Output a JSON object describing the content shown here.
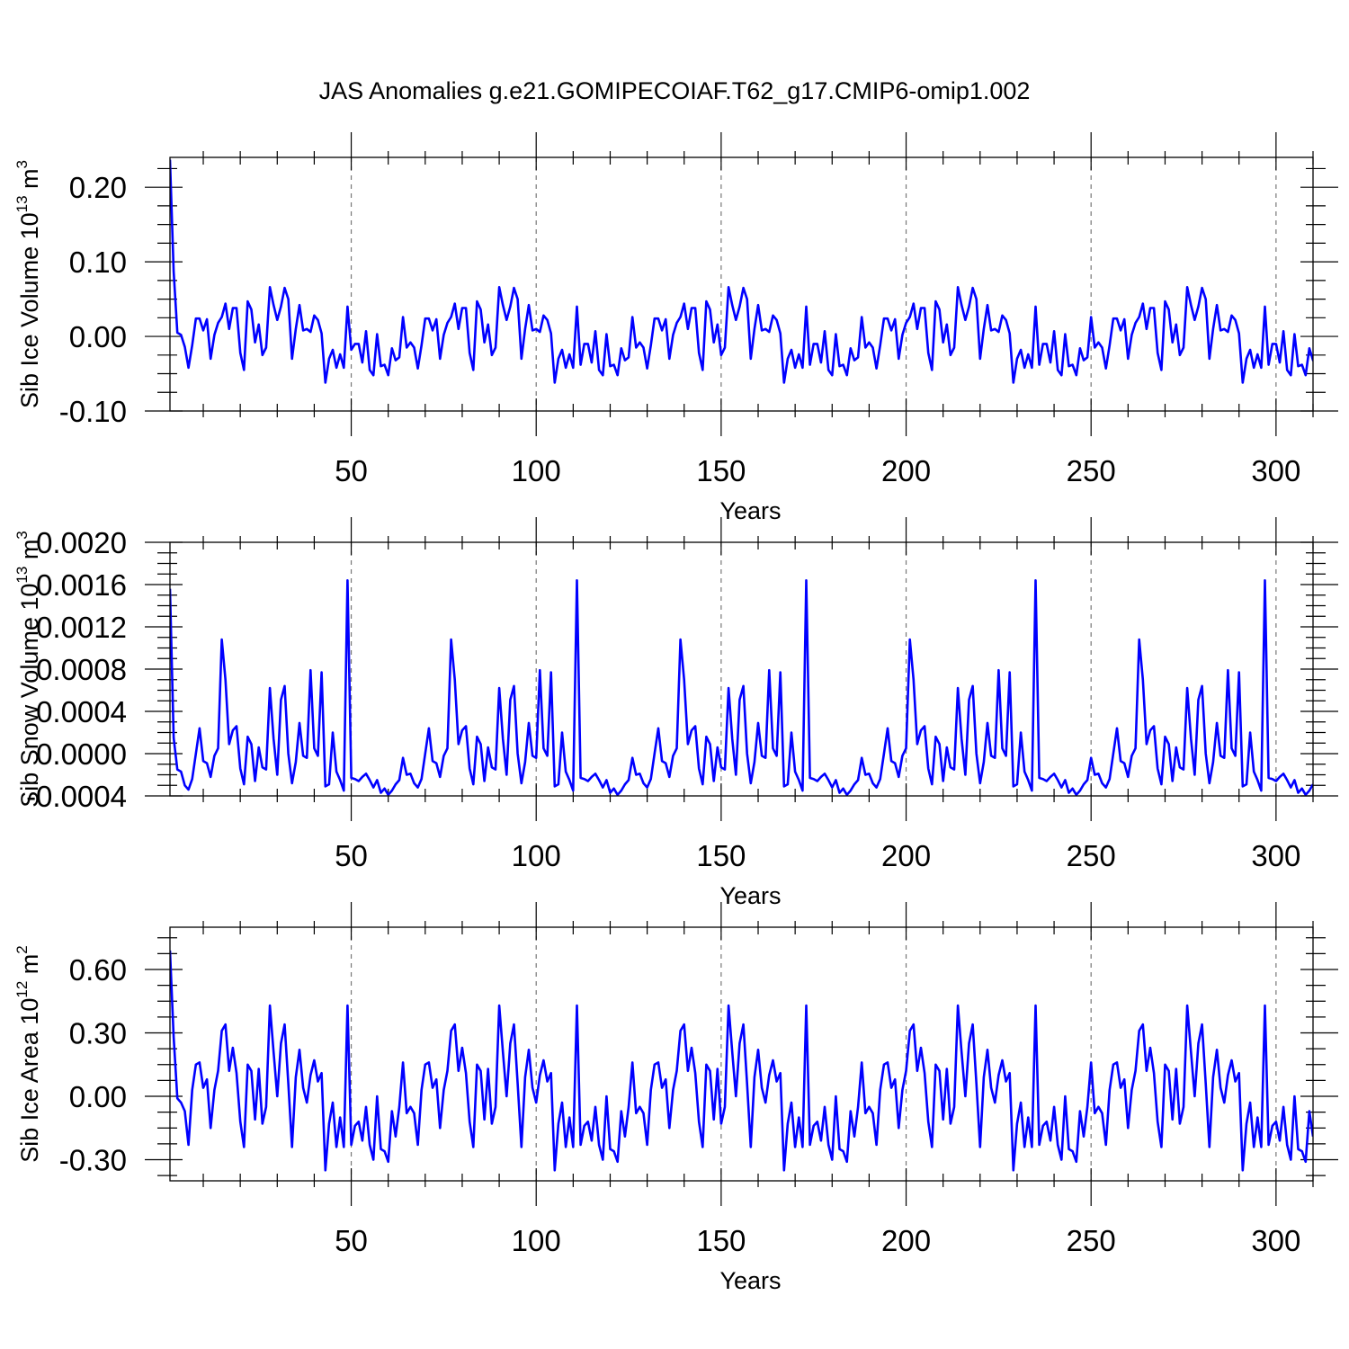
{
  "figure": {
    "title": "JAS Anomalies g.e21.GOMIPECOIAF.T62_g17.CMIP6-omip1.002",
    "line_color": "#0000ff",
    "grid": "dashed vertical lines at major x ticks"
  },
  "chart_data": [
    {
      "type": "line",
      "title": "JAS Anomalies g.e21.GOMIPECOIAF.T62_g17.CMIP6-omip1.002",
      "ylabel": "Sib Ice Volume 10",
      "ylabel_sup": "13",
      "ylabel_unit": " m",
      "ylabel_unit_sup": "3",
      "xlabel": "Years",
      "xlim": [
        1,
        310
      ],
      "ylim": [
        -0.1,
        0.24
      ],
      "xticks": [
        50,
        100,
        150,
        200,
        250,
        300
      ],
      "xtick_labels": [
        "50",
        "100",
        "150",
        "200",
        "250",
        "300"
      ],
      "yticks": [
        -0.1,
        0.0,
        0.1,
        0.2
      ],
      "ytick_labels": [
        "-0.10",
        "0.00",
        "0.10",
        "0.20"
      ],
      "cycle_start_x": 3,
      "cycle_length": 62,
      "pattern_length": 62,
      "notes": "Approximate values read from the plot; after an initial spin-up the series repeats with a 62-year forcing cycle.",
      "values": [
        0.237,
        0.087,
        0.005,
        0.002,
        -0.014,
        -0.042,
        -0.012,
        0.024,
        0.024,
        0.008,
        0.023,
        -0.03,
        0.002,
        0.018,
        0.026,
        0.044,
        0.01,
        0.038,
        0.038,
        -0.022,
        -0.045,
        0.047,
        0.036,
        -0.008,
        0.016,
        -0.025,
        -0.015,
        0.066,
        0.042,
        0.022,
        0.04,
        0.065,
        0.05,
        -0.03,
        0.01,
        0.042,
        0.008,
        0.01,
        0.006,
        0.028,
        0.022,
        0.004,
        -0.062,
        -0.03,
        -0.018,
        -0.042,
        -0.024,
        -0.042,
        0.04,
        -0.018,
        -0.01,
        -0.01,
        -0.035,
        0.007,
        -0.045,
        -0.052,
        0.003,
        -0.04,
        -0.038,
        -0.052,
        -0.016,
        -0.032,
        -0.028,
        0.026,
        -0.015,
        -0.008,
        -0.015,
        -0.043,
        -0.012,
        0.024,
        0.024,
        0.008,
        0.023,
        -0.03,
        0.002,
        0.018,
        0.026,
        0.044,
        0.01,
        0.038,
        0.038,
        -0.022,
        -0.045,
        0.047,
        0.036,
        -0.008,
        0.016,
        -0.025,
        -0.015,
        0.066,
        0.042,
        0.022,
        0.04,
        0.065,
        0.05,
        -0.03,
        0.01,
        0.042,
        0.008,
        0.01,
        0.006,
        0.028,
        0.022,
        0.004,
        -0.062,
        -0.03,
        -0.018,
        -0.042,
        -0.024,
        -0.042,
        0.04,
        -0.038,
        -0.01,
        -0.01,
        -0.035,
        0.007,
        -0.045,
        -0.052,
        0.003,
        -0.04,
        -0.038,
        -0.052,
        -0.016,
        -0.032,
        -0.028,
        0.026,
        -0.015,
        -0.008,
        -0.015,
        -0.043,
        -0.012,
        0.024,
        0.024,
        0.008,
        0.023,
        -0.03,
        0.002,
        0.018,
        0.026,
        0.044,
        0.01,
        0.038,
        0.038,
        -0.022,
        -0.045,
        0.047,
        0.036,
        -0.008,
        0.016,
        -0.025,
        -0.015,
        0.066,
        0.042,
        0.022,
        0.04,
        0.065,
        0.05,
        -0.03,
        0.01,
        0.042,
        0.008,
        0.01,
        0.006,
        0.028,
        0.022,
        0.004,
        -0.062,
        -0.03,
        -0.018,
        -0.042,
        -0.024,
        -0.042,
        0.04,
        -0.038,
        -0.01,
        -0.01,
        -0.035,
        0.007,
        -0.045,
        -0.052,
        0.003,
        -0.04,
        -0.038,
        -0.052,
        -0.016,
        -0.032,
        -0.028,
        0.026,
        -0.015,
        -0.008,
        -0.015,
        -0.043,
        -0.012,
        0.024,
        0.024,
        0.008,
        0.023,
        -0.03,
        0.002,
        0.018,
        0.026,
        0.044,
        0.01,
        0.038,
        0.038,
        -0.022,
        -0.045,
        0.047,
        0.036,
        -0.008,
        0.016,
        -0.025,
        -0.015,
        0.066,
        0.042,
        0.022,
        0.04,
        0.065,
        0.05,
        -0.03,
        0.01,
        0.042,
        0.008,
        0.01,
        0.006,
        0.028,
        0.022,
        0.004,
        -0.062,
        -0.03,
        -0.018,
        -0.042,
        -0.024,
        -0.042,
        0.04,
        -0.038,
        -0.01,
        -0.01,
        -0.035,
        0.007,
        -0.045,
        -0.052,
        0.003,
        -0.04,
        -0.038,
        -0.052,
        -0.016,
        -0.032,
        -0.028,
        0.026,
        -0.015,
        -0.008,
        -0.015,
        -0.043,
        -0.012,
        0.024,
        0.024,
        0.008,
        0.023,
        -0.03,
        0.002,
        0.018,
        0.026,
        0.044,
        0.01,
        0.038,
        0.038,
        -0.022,
        -0.045,
        0.047,
        0.036,
        -0.008,
        0.016,
        -0.025,
        -0.015,
        0.066,
        0.042,
        0.022,
        0.04,
        0.065,
        0.05,
        -0.03,
        0.01,
        0.042,
        0.008,
        0.01,
        0.006,
        0.028,
        0.022,
        0.004,
        -0.062,
        -0.03,
        -0.018,
        -0.042,
        -0.024,
        -0.042,
        0.04,
        -0.038,
        -0.01,
        -0.01,
        -0.035,
        0.007,
        -0.045,
        -0.052,
        0.003,
        -0.04,
        -0.038,
        -0.052,
        -0.016,
        -0.032,
        -0.028
      ]
    },
    {
      "type": "line",
      "ylabel": "Sib Snow Volume 10",
      "ylabel_sup": "13",
      "ylabel_unit": " m",
      "ylabel_unit_sup": "3",
      "xlabel": "Years",
      "xlim": [
        1,
        310
      ],
      "ylim": [
        -0.0004,
        0.002
      ],
      "xticks": [
        50,
        100,
        150,
        200,
        250,
        300
      ],
      "xtick_labels": [
        "50",
        "100",
        "150",
        "200",
        "250",
        "300"
      ],
      "yticks": [
        -0.0004,
        0.0,
        0.0004,
        0.0008,
        0.0012,
        0.0016,
        0.002
      ],
      "ytick_labels": [
        "-0.0004",
        "0.0000",
        "0.0004",
        "0.0008",
        "0.0012",
        "0.0016",
        "0.0020"
      ],
      "cycle_start_x": 3,
      "cycle_length": 62,
      "notes": "Approximate values read from the plot; the series repeats with a 62-year forcing cycle.",
      "values": [
        0.00156,
        0.00015,
        -0.00015,
        -0.00017,
        -0.0003,
        -0.00034,
        -0.00024,
        0.0,
        0.00024,
        -7e-05,
        -9e-05,
        -0.00022,
        -2e-05,
        5e-05,
        0.00108,
        0.0007,
        9e-05,
        0.00022,
        0.00026,
        -0.00014,
        -0.00029,
        0.00016,
        9e-05,
        -0.00026,
        6e-05,
        -0.00013,
        -0.00015,
        0.00062,
        0.00014,
        -0.0002,
        0.00051,
        0.00064,
        0.0,
        -0.00028,
        -8e-05,
        0.00029,
        -2e-05,
        -4e-05,
        0.00079,
        5e-05,
        -2e-05,
        0.00077,
        -0.00031,
        -0.00029,
        0.0002,
        -0.00017,
        -0.00025,
        -0.00035,
        0.00164,
        -0.00023,
        -0.00024,
        -0.00026,
        -0.00022,
        -0.00019,
        -0.00025,
        -0.00032,
        -0.00025,
        -0.00037,
        -0.00033,
        -0.00039,
        -0.00035,
        -0.00029,
        -0.00025,
        -4e-05,
        -0.0002,
        -0.00019,
        -0.00028,
        -0.00032,
        -0.00024,
        0.0,
        0.00024,
        -7e-05,
        -9e-05,
        -0.00022,
        -2e-05,
        5e-05,
        0.00108,
        0.0007,
        9e-05,
        0.00022,
        0.00026,
        -0.00014,
        -0.00029,
        0.00016,
        9e-05,
        -0.00026,
        6e-05,
        -0.00013,
        -0.00015,
        0.00062,
        0.00014,
        -0.0002,
        0.00051,
        0.00064,
        0.0,
        -0.00028,
        -8e-05,
        0.00029,
        -2e-05,
        -4e-05,
        0.00079,
        5e-05,
        -2e-05,
        0.00077,
        -0.00031,
        -0.00029,
        0.0002,
        -0.00017,
        -0.00025,
        -0.00035,
        0.00164,
        -0.00023,
        -0.00024,
        -0.00026,
        -0.00022,
        -0.00019,
        -0.00025,
        -0.00032,
        -0.00025,
        -0.00037,
        -0.00033,
        -0.00039,
        -0.00035,
        -0.00029,
        -0.00025,
        -4e-05,
        -0.0002,
        -0.00019,
        -0.00028,
        -0.00032,
        -0.00024,
        0.0,
        0.00024,
        -7e-05,
        -9e-05,
        -0.00022,
        -2e-05,
        5e-05,
        0.00108,
        0.0007,
        9e-05,
        0.00022,
        0.00026,
        -0.00014,
        -0.00029,
        0.00016,
        9e-05,
        -0.00026,
        6e-05,
        -0.00013,
        -0.00015,
        0.00062,
        0.00014,
        -0.0002,
        0.00051,
        0.00064,
        0.0,
        -0.00028,
        -8e-05,
        0.00029,
        -2e-05,
        -4e-05,
        0.00079,
        5e-05,
        -2e-05,
        0.00077,
        -0.00031,
        -0.00029,
        0.0002,
        -0.00017,
        -0.00025,
        -0.00035,
        0.00164,
        -0.00023,
        -0.00024,
        -0.00026,
        -0.00022,
        -0.00019,
        -0.00025,
        -0.00032,
        -0.00025,
        -0.00037,
        -0.00033,
        -0.00039,
        -0.00035,
        -0.00029,
        -0.00025,
        -4e-05,
        -0.0002,
        -0.00019,
        -0.00028,
        -0.00032,
        -0.00024,
        0.0,
        0.00024,
        -7e-05,
        -9e-05,
        -0.00022,
        -2e-05,
        5e-05,
        0.00108,
        0.0007,
        9e-05,
        0.00022,
        0.00026,
        -0.00014,
        -0.00029,
        0.00016,
        9e-05,
        -0.00026,
        6e-05,
        -0.00013,
        -0.00015,
        0.00062,
        0.00014,
        -0.0002,
        0.00051,
        0.00064,
        0.0,
        -0.00028,
        -8e-05,
        0.00029,
        -2e-05,
        -4e-05,
        0.00079,
        5e-05,
        -2e-05,
        0.00077,
        -0.00031,
        -0.00029,
        0.0002,
        -0.00017,
        -0.00025,
        -0.00035,
        0.00164,
        -0.00023,
        -0.00024,
        -0.00026,
        -0.00022,
        -0.00019,
        -0.00025,
        -0.00032,
        -0.00025,
        -0.00037,
        -0.00033,
        -0.00039,
        -0.00035,
        -0.00029,
        -0.00025,
        -4e-05,
        -0.0002,
        -0.00019,
        -0.00028,
        -0.00032,
        -0.00024,
        0.0,
        0.00024,
        -7e-05,
        -9e-05,
        -0.00022,
        -2e-05,
        5e-05,
        0.00108,
        0.0007,
        9e-05,
        0.00022,
        0.00026,
        -0.00014,
        -0.00029,
        0.00016,
        9e-05,
        -0.00026,
        6e-05,
        -0.00013,
        -0.00015,
        0.00062,
        0.00014,
        -0.0002,
        0.00051,
        0.00064,
        0.0,
        -0.00028,
        -8e-05,
        0.00029,
        -2e-05,
        -4e-05,
        0.00079,
        5e-05,
        -2e-05,
        0.00077,
        -0.00031,
        -0.00029,
        0.0002,
        -0.00017,
        -0.00025,
        -0.00035,
        0.00164,
        -0.00023,
        -0.00024,
        -0.00026,
        -0.00022,
        -0.00019,
        -0.00025,
        -0.00032,
        -0.00025,
        -0.00037,
        -0.00033,
        -0.00039,
        -0.00035,
        -0.00029
      ]
    },
    {
      "type": "line",
      "ylabel": "Sib Ice Area 10",
      "ylabel_sup": "12",
      "ylabel_unit": " m",
      "ylabel_unit_sup": "2",
      "xlabel": "Years",
      "xlim": [
        1,
        310
      ],
      "ylim": [
        -0.4,
        0.8
      ],
      "xticks": [
        50,
        100,
        150,
        200,
        250,
        300
      ],
      "xtick_labels": [
        "50",
        "100",
        "150",
        "200",
        "250",
        "300"
      ],
      "yticks": [
        -0.3,
        0.0,
        0.3,
        0.6
      ],
      "ytick_labels": [
        "-0.30",
        "0.00",
        "0.30",
        "0.60"
      ],
      "cycle_start_x": 3,
      "cycle_length": 62,
      "notes": "Approximate values read from the plot; the series repeats with a 62-year forcing cycle.",
      "values": [
        0.69,
        0.28,
        -0.01,
        -0.03,
        -0.07,
        -0.23,
        0.03,
        0.15,
        0.16,
        0.04,
        0.08,
        -0.15,
        0.03,
        0.12,
        0.31,
        0.34,
        0.12,
        0.23,
        0.11,
        -0.12,
        -0.24,
        0.15,
        0.12,
        -0.11,
        0.13,
        -0.13,
        -0.05,
        0.43,
        0.21,
        0.0,
        0.25,
        0.34,
        0.06,
        -0.24,
        0.09,
        0.22,
        0.04,
        -0.03,
        0.1,
        0.17,
        0.07,
        0.11,
        -0.35,
        -0.13,
        -0.03,
        -0.24,
        -0.1,
        -0.24,
        0.43,
        -0.23,
        -0.14,
        -0.12,
        -0.21,
        -0.05,
        -0.23,
        -0.3,
        0.0,
        -0.25,
        -0.26,
        -0.31,
        -0.07,
        -0.19,
        -0.05,
        0.16,
        -0.08,
        -0.05,
        -0.08,
        -0.23,
        0.03,
        0.15,
        0.16,
        0.04,
        0.08,
        -0.15,
        0.03,
        0.12,
        0.31,
        0.34,
        0.12,
        0.23,
        0.11,
        -0.12,
        -0.24,
        0.15,
        0.12,
        -0.11,
        0.13,
        -0.13,
        -0.05,
        0.43,
        0.21,
        0.0,
        0.25,
        0.34,
        0.06,
        -0.24,
        0.09,
        0.22,
        0.04,
        -0.03,
        0.1,
        0.17,
        0.07,
        0.11,
        -0.35,
        -0.13,
        -0.03,
        -0.24,
        -0.1,
        -0.24,
        0.43,
        -0.23,
        -0.14,
        -0.12,
        -0.21,
        -0.05,
        -0.23,
        -0.3,
        0.0,
        -0.25,
        -0.26,
        -0.31,
        -0.07,
        -0.19,
        -0.05,
        0.16,
        -0.08,
        -0.05,
        -0.08,
        -0.23,
        0.03,
        0.15,
        0.16,
        0.04,
        0.08,
        -0.15,
        0.03,
        0.12,
        0.31,
        0.34,
        0.12,
        0.23,
        0.11,
        -0.12,
        -0.24,
        0.15,
        0.12,
        -0.11,
        0.13,
        -0.13,
        -0.05,
        0.43,
        0.21,
        0.0,
        0.25,
        0.34,
        0.06,
        -0.24,
        0.09,
        0.22,
        0.04,
        -0.03,
        0.1,
        0.17,
        0.07,
        0.11,
        -0.35,
        -0.13,
        -0.03,
        -0.24,
        -0.1,
        -0.24,
        0.43,
        -0.23,
        -0.14,
        -0.12,
        -0.21,
        -0.05,
        -0.23,
        -0.3,
        0.0,
        -0.25,
        -0.26,
        -0.31,
        -0.07,
        -0.19,
        -0.05,
        0.16,
        -0.08,
        -0.05,
        -0.08,
        -0.23,
        0.03,
        0.15,
        0.16,
        0.04,
        0.08,
        -0.15,
        0.03,
        0.12,
        0.31,
        0.34,
        0.12,
        0.23,
        0.11,
        -0.12,
        -0.24,
        0.15,
        0.12,
        -0.11,
        0.13,
        -0.13,
        -0.05,
        0.43,
        0.21,
        0.0,
        0.25,
        0.34,
        0.06,
        -0.24,
        0.09,
        0.22,
        0.04,
        -0.03,
        0.1,
        0.17,
        0.07,
        0.11,
        -0.35,
        -0.13,
        -0.03,
        -0.24,
        -0.1,
        -0.24,
        0.43,
        -0.23,
        -0.14,
        -0.12,
        -0.21,
        -0.05,
        -0.23,
        -0.3,
        0.0,
        -0.25,
        -0.26,
        -0.31,
        -0.07,
        -0.19,
        -0.05,
        0.16,
        -0.08,
        -0.05,
        -0.08,
        -0.23,
        0.03,
        0.15,
        0.16,
        0.04,
        0.08,
        -0.15,
        0.03,
        0.12,
        0.31,
        0.34,
        0.12,
        0.23,
        0.11,
        -0.12,
        -0.24,
        0.15,
        0.12,
        -0.11,
        0.13,
        -0.13,
        -0.05,
        0.43,
        0.21,
        0.0,
        0.25,
        0.34,
        0.06,
        -0.24,
        0.09,
        0.22,
        0.04,
        -0.03,
        0.1,
        0.17,
        0.07,
        0.11,
        -0.35,
        -0.13,
        -0.03,
        -0.24,
        -0.1,
        -0.24,
        0.43,
        -0.23,
        -0.14,
        -0.12,
        -0.21,
        -0.05,
        -0.23,
        -0.3,
        0.0,
        -0.25,
        -0.26,
        -0.31,
        -0.07,
        -0.19
      ]
    }
  ]
}
